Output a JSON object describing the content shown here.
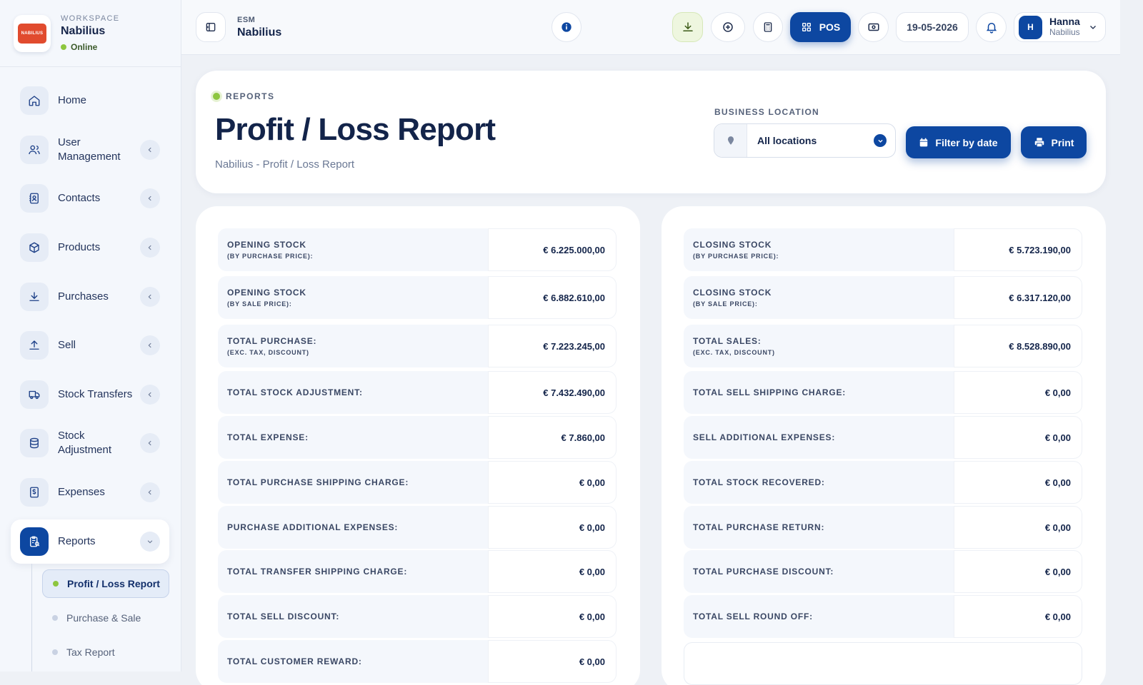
{
  "workspace": {
    "caption": "WORKSPACE",
    "name": "Nabilius",
    "status": "Online",
    "logo_text": "NABILIUS"
  },
  "sidebar": {
    "items": [
      {
        "label": "Home"
      },
      {
        "label": "User Management"
      },
      {
        "label": "Contacts"
      },
      {
        "label": "Products"
      },
      {
        "label": "Purchases"
      },
      {
        "label": "Sell"
      },
      {
        "label": "Stock Transfers"
      },
      {
        "label": "Stock Adjustment"
      },
      {
        "label": "Expenses"
      },
      {
        "label": "Reports"
      }
    ],
    "sub_items": [
      {
        "label": "Profit / Loss Report"
      },
      {
        "label": "Purchase & Sale"
      },
      {
        "label": "Tax Report"
      }
    ]
  },
  "topbar": {
    "small": "ESM",
    "title": "Nabilius",
    "pos_label": "POS",
    "date": "19-05-2026",
    "user_name": "Hanna",
    "user_company": "Nabilius",
    "avatar_initial": "H"
  },
  "header": {
    "crumb": "REPORTS",
    "title": "Profit / Loss Report",
    "subtitle": "Nabilius - Profit / Loss Report",
    "location_label": "BUSINESS LOCATION",
    "location_value": "All locations",
    "filter_label": "Filter by date",
    "print_label": "Print"
  },
  "left_rows": [
    {
      "label": "OPENING STOCK",
      "sub": "(BY PURCHASE PRICE):",
      "value": "€ 6.225.000,00"
    },
    {
      "label": "OPENING STOCK",
      "sub": "(BY SALE PRICE):",
      "value": "€ 6.882.610,00"
    },
    {
      "label": "TOTAL PURCHASE:",
      "sub": "(EXC. TAX, DISCOUNT)",
      "value": "€ 7.223.245,00"
    },
    {
      "label": "TOTAL STOCK ADJUSTMENT:",
      "value": "€ 7.432.490,00"
    },
    {
      "label": "TOTAL EXPENSE:",
      "value": "€ 7.860,00"
    },
    {
      "label": "TOTAL PURCHASE SHIPPING CHARGE:",
      "value": "€ 0,00"
    },
    {
      "label": "PURCHASE ADDITIONAL EXPENSES:",
      "value": "€ 0,00"
    },
    {
      "label": "TOTAL TRANSFER SHIPPING CHARGE:",
      "value": "€ 0,00"
    },
    {
      "label": "TOTAL SELL DISCOUNT:",
      "value": "€ 0,00"
    },
    {
      "label": "TOTAL CUSTOMER REWARD:",
      "value": "€ 0,00"
    }
  ],
  "right_rows": [
    {
      "label": "CLOSING STOCK",
      "sub": "(BY PURCHASE PRICE):",
      "value": "€ 5.723.190,00"
    },
    {
      "label": "CLOSING STOCK",
      "sub": "(BY SALE PRICE):",
      "value": "€ 6.317.120,00"
    },
    {
      "label": "TOTAL SALES:",
      "sub": "(EXC. TAX, DISCOUNT)",
      "value": "€ 8.528.890,00"
    },
    {
      "label": "TOTAL SELL SHIPPING CHARGE:",
      "value": "€ 0,00"
    },
    {
      "label": "SELL ADDITIONAL EXPENSES:",
      "value": "€ 0,00"
    },
    {
      "label": "TOTAL STOCK RECOVERED:",
      "value": "€ 0,00"
    },
    {
      "label": "TOTAL PURCHASE RETURN:",
      "value": "€ 0,00"
    },
    {
      "label": "TOTAL PURCHASE DISCOUNT:",
      "value": "€ 0,00"
    },
    {
      "label": "TOTAL SELL ROUND OFF:",
      "value": "€ 0,00"
    }
  ],
  "colors": {
    "accent": "#0d47a1",
    "online": "#8dc63f",
    "background": "#eef1f6"
  },
  "icons": {
    "home": "home-icon",
    "users": "users-icon",
    "contacts": "contacts-icon",
    "products": "box-icon",
    "purchases": "download-icon",
    "sell": "upload-icon",
    "transfers": "truck-icon",
    "adjustment": "database-icon",
    "expenses": "receipt-icon",
    "reports": "clipboard-icon"
  }
}
